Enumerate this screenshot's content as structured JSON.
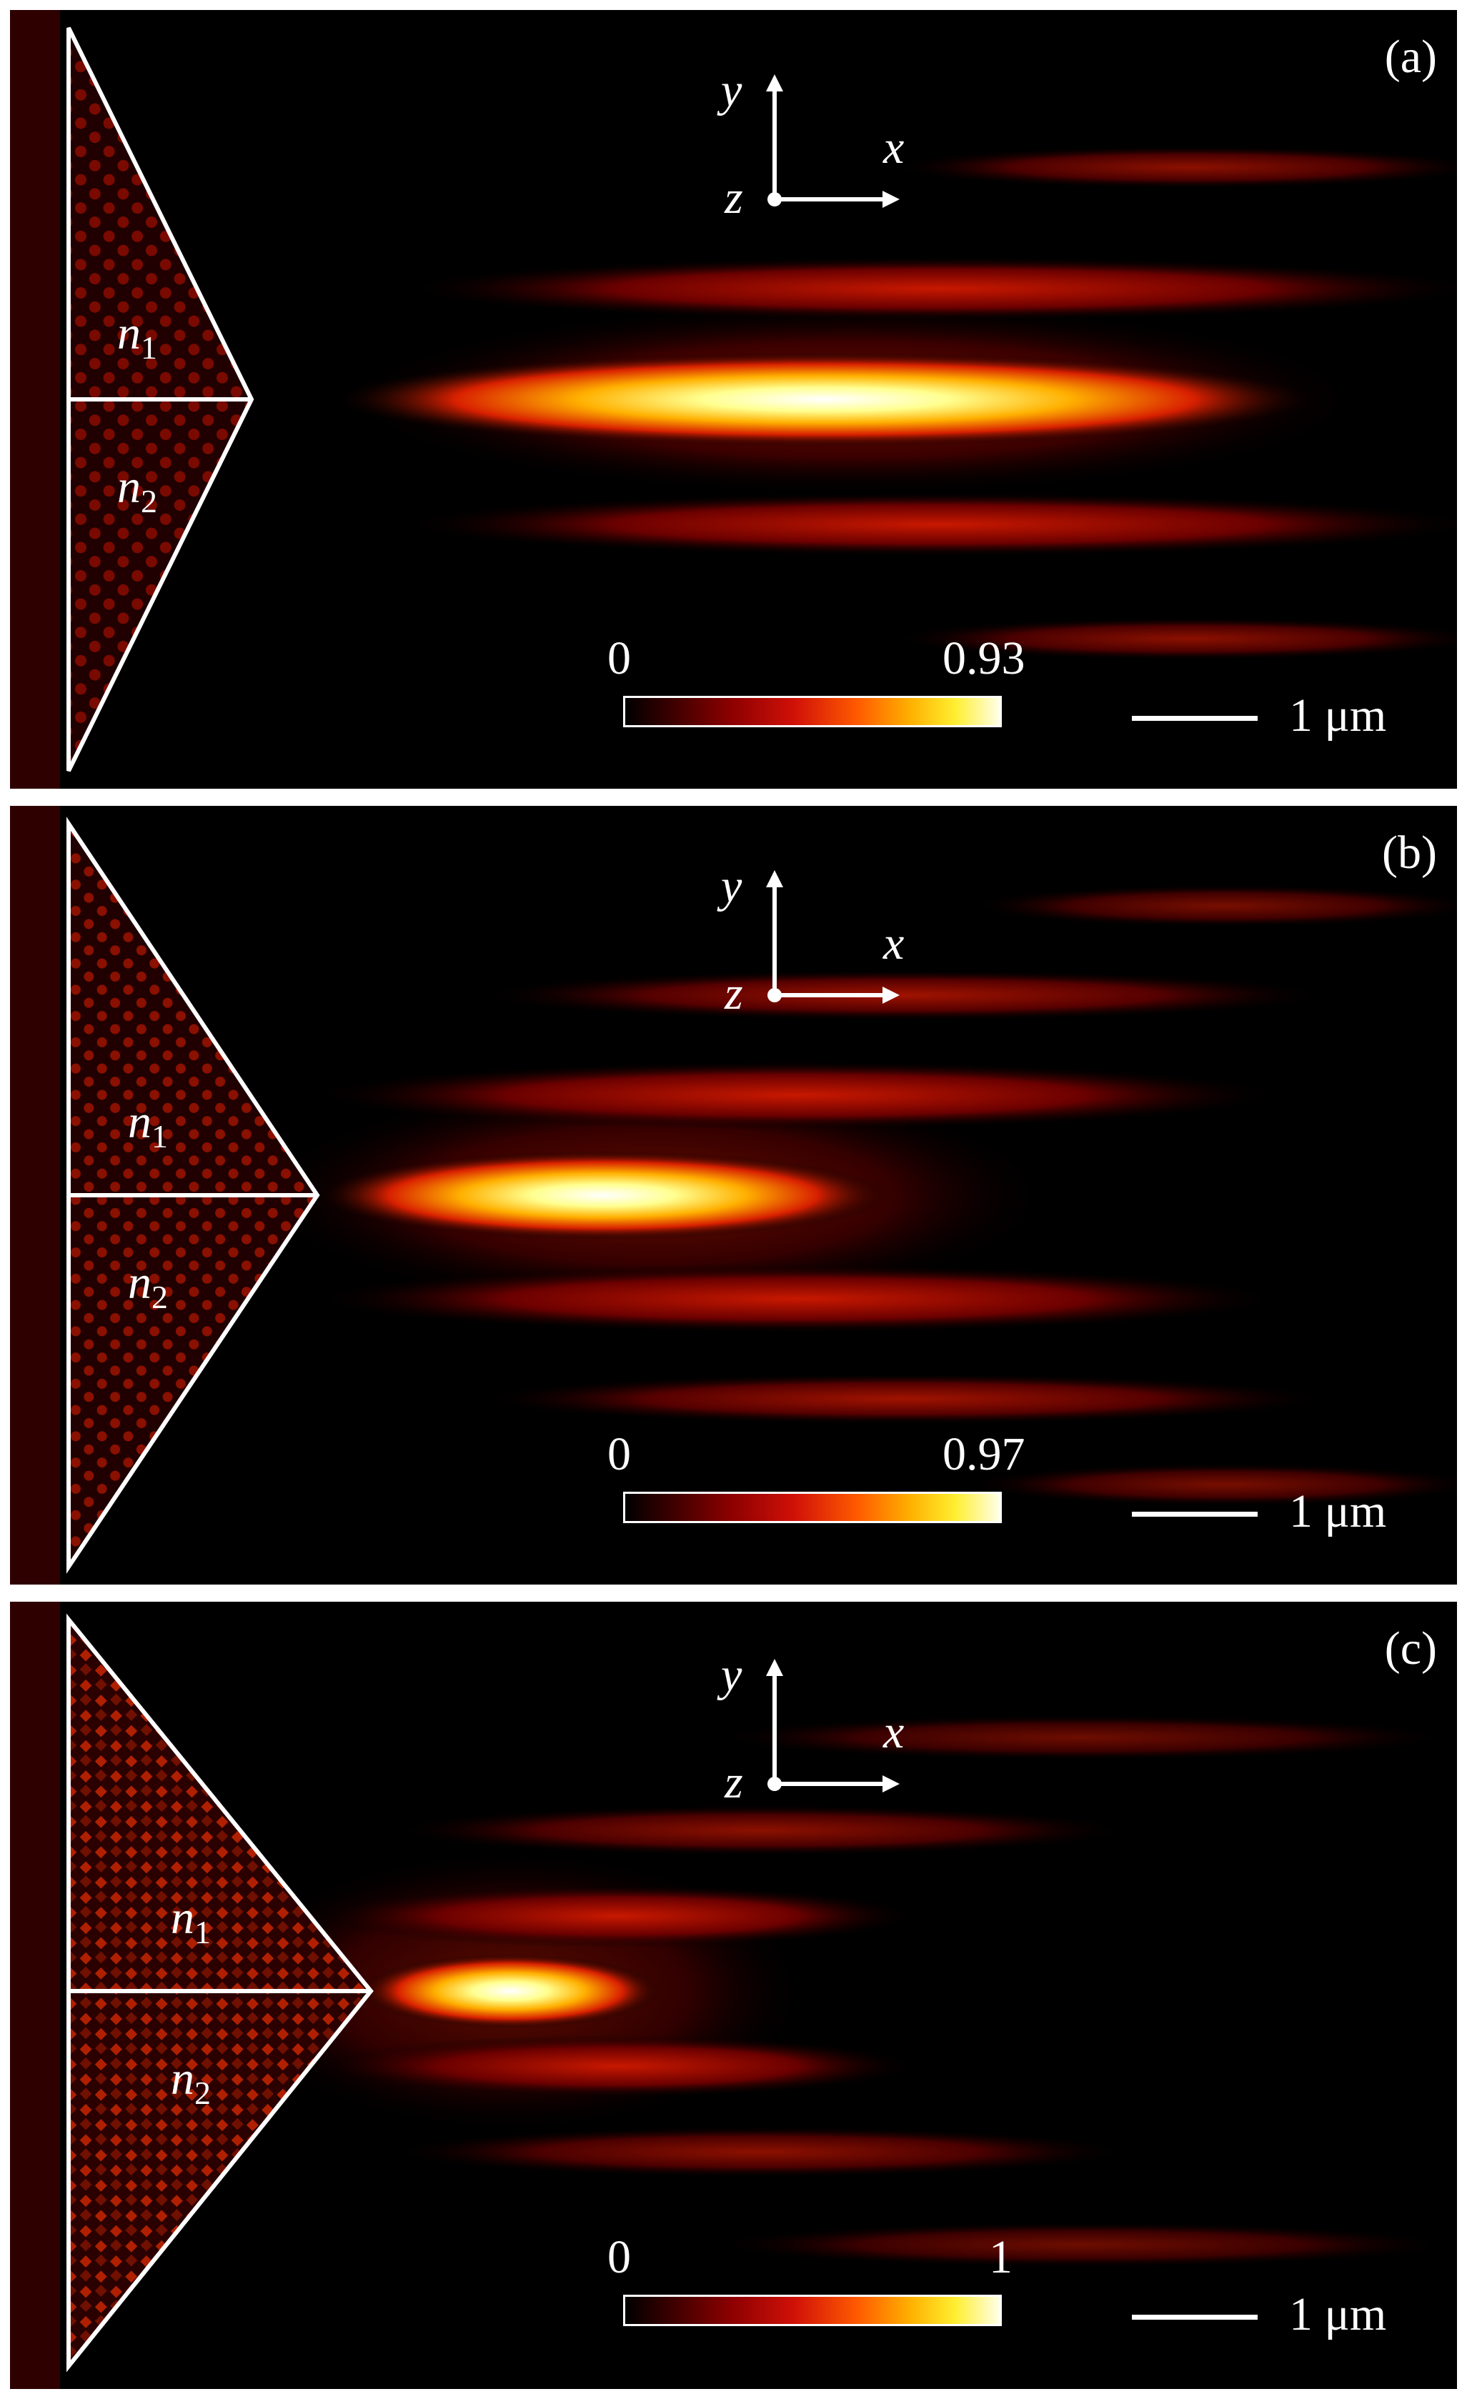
{
  "panels": [
    {
      "label": "(a)",
      "colorbar_min": "0",
      "colorbar_max": "0.93",
      "scalebar": "1 μm",
      "axes": {
        "y": "y",
        "x": "x",
        "z": "z"
      },
      "regions": [
        {
          "n": "n",
          "sub": "1"
        },
        {
          "n": "n",
          "sub": "2"
        }
      ]
    },
    {
      "label": "(b)",
      "colorbar_min": "0",
      "colorbar_max": "0.97",
      "scalebar": "1 μm",
      "axes": {
        "y": "y",
        "x": "x",
        "z": "z"
      },
      "regions": [
        {
          "n": "n",
          "sub": "1"
        },
        {
          "n": "n",
          "sub": "2"
        }
      ]
    },
    {
      "label": "(c)",
      "colorbar_min": "0",
      "colorbar_max": "1",
      "scalebar": "1 μm",
      "axes": {
        "y": "y",
        "x": "x",
        "z": "z"
      },
      "regions": [
        {
          "n": "n",
          "sub": "1"
        },
        {
          "n": "n",
          "sub": "2"
        }
      ]
    }
  ],
  "colors": {
    "background": "#000000",
    "outline": "#ffffff",
    "hot": "#ffffe0",
    "warm": "#ff7a00",
    "dark_red": "#8b0000"
  }
}
